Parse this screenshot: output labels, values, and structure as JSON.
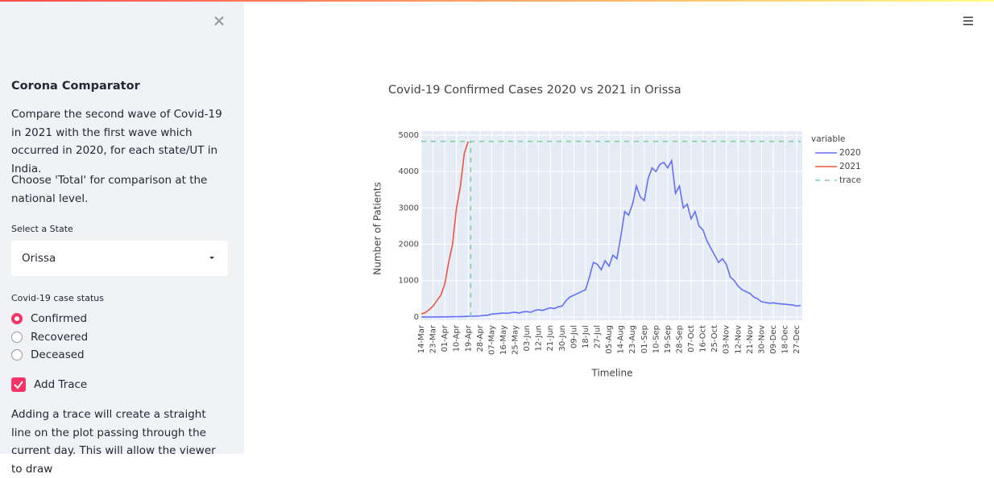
{
  "sidebar": {
    "title": "Corona Comparator",
    "intro": "Compare the second wave of Covid-19 in 2021 with the first wave which occurred in 2020, for each state/UT in India.",
    "hint": "Choose 'Total' for comparison at the national level.",
    "state_label": "Select a State",
    "state_value": "Orissa",
    "status_label": "Covid-19 case status",
    "status_options": [
      "Confirmed",
      "Recovered",
      "Deceased"
    ],
    "trace_checkbox": "Add Trace",
    "trace_help": "Adding a trace will create a straight line on the plot passing through the current day. This will allow the viewer to draw"
  },
  "chart_data": {
    "type": "line",
    "title": "Covid-19 Confirmed Cases 2020 vs 2021 in Orissa",
    "x_label": "Timeline",
    "y_label": "Number of Patients",
    "legend_title": "variable",
    "grid": true,
    "categories": [
      "14-Mar",
      null,
      null,
      "23-Mar",
      null,
      null,
      "01-Apr",
      null,
      null,
      "10-Apr",
      null,
      null,
      "19-Apr",
      null,
      null,
      "28-Apr",
      null,
      null,
      "07-May",
      null,
      null,
      "16-May",
      null,
      null,
      "25-May",
      null,
      null,
      "03-Jun",
      null,
      null,
      "12-Jun",
      null,
      null,
      "21-Jun",
      null,
      null,
      "30-Jun",
      null,
      null,
      "09-Jul",
      null,
      null,
      "18-Jul",
      null,
      null,
      "27-Jul",
      null,
      null,
      "05-Aug",
      null,
      null,
      "14-Aug",
      null,
      null,
      "23-Aug",
      null,
      null,
      "01-Sep",
      null,
      null,
      "10-Sep",
      null,
      null,
      "19-Sep",
      null,
      null,
      "28-Sep",
      null,
      null,
      "07-Oct",
      null,
      null,
      "16-Oct",
      null,
      null,
      "25-Oct",
      null,
      null,
      "03-Nov",
      null,
      null,
      "12-Nov",
      null,
      null,
      "21-Nov",
      null,
      null,
      "30-Nov",
      null,
      null,
      "09-Dec",
      null,
      null,
      "18-Dec",
      null,
      null,
      "27-Dec",
      null
    ],
    "ylim": [
      -90,
      5110
    ],
    "yticks": [
      0,
      1000,
      2000,
      3000,
      4000,
      5000
    ],
    "series": [
      {
        "name": "2020",
        "color": "#636efa",
        "values": [
          0,
          0,
          1,
          2,
          3,
          3,
          5,
          6,
          8,
          10,
          12,
          15,
          18,
          20,
          25,
          30,
          40,
          50,
          80,
          90,
          100,
          110,
          100,
          120,
          130,
          110,
          140,
          150,
          130,
          180,
          200,
          180,
          220,
          250,
          230,
          280,
          300,
          450,
          550,
          600,
          650,
          700,
          750,
          1100,
          1500,
          1450,
          1300,
          1550,
          1400,
          1700,
          1600,
          2200,
          2900,
          2800,
          3100,
          3600,
          3300,
          3200,
          3800,
          4100,
          4000,
          4200,
          4250,
          4100,
          4300,
          3400,
          3600,
          3000,
          3100,
          2700,
          2900,
          2500,
          2400,
          2100,
          1900,
          1700,
          1500,
          1600,
          1450,
          1100,
          1000,
          850,
          750,
          700,
          650,
          550,
          500,
          420,
          400,
          380,
          390,
          370,
          360,
          350,
          340,
          330,
          300,
          320
        ]
      },
      {
        "name": "2021",
        "color": "#ef553b",
        "values": [
          80,
          120,
          200,
          300,
          450,
          600,
          900,
          1500,
          2000,
          3000,
          3600,
          4500,
          4830,
          null,
          null,
          null,
          null,
          null,
          null,
          null,
          null,
          null,
          null,
          null,
          null,
          null,
          null,
          null,
          null,
          null,
          null,
          null,
          null,
          null,
          null,
          null,
          null,
          null,
          null,
          null,
          null,
          null,
          null,
          null,
          null,
          null,
          null,
          null,
          null,
          null,
          null,
          null,
          null,
          null,
          null,
          null,
          null,
          null,
          null,
          null,
          null,
          null,
          null,
          null,
          null,
          null,
          null,
          null,
          null,
          null,
          null,
          null,
          null,
          null,
          null,
          null,
          null,
          null,
          null,
          null,
          null,
          null,
          null,
          null,
          null,
          null,
          null,
          null,
          null,
          null,
          null,
          null,
          null,
          null,
          null,
          null,
          null,
          null
        ]
      },
      {
        "name": "trace",
        "color": "#7fcf9f",
        "dashed": true,
        "values": [
          4830,
          4830,
          4830,
          4830,
          4830,
          4830,
          4830,
          4830,
          4830,
          4830,
          4830,
          4830,
          4830,
          4830,
          4830,
          4830,
          4830,
          4830,
          4830,
          4830,
          4830,
          4830,
          4830,
          4830,
          4830,
          4830,
          4830,
          4830,
          4830,
          4830,
          4830,
          4830,
          4830,
          4830,
          4830,
          4830,
          4830,
          4830,
          4830,
          4830,
          4830,
          4830,
          4830,
          4830,
          4830,
          4830,
          4830,
          4830,
          4830,
          4830,
          4830,
          4830,
          4830,
          4830,
          4830,
          4830,
          4830,
          4830,
          4830,
          4830,
          4830,
          4830,
          4830,
          4830,
          4830,
          4830,
          4830,
          4830,
          4830,
          4830,
          4830,
          4830,
          4830,
          4830,
          4830,
          4830,
          4830,
          4830,
          4830,
          4830,
          4830,
          4830,
          4830,
          4830,
          4830,
          4830,
          4830,
          4830,
          4830,
          4830,
          4830,
          4830,
          4830,
          4830,
          4830,
          4830,
          4830,
          4830
        ]
      }
    ]
  }
}
